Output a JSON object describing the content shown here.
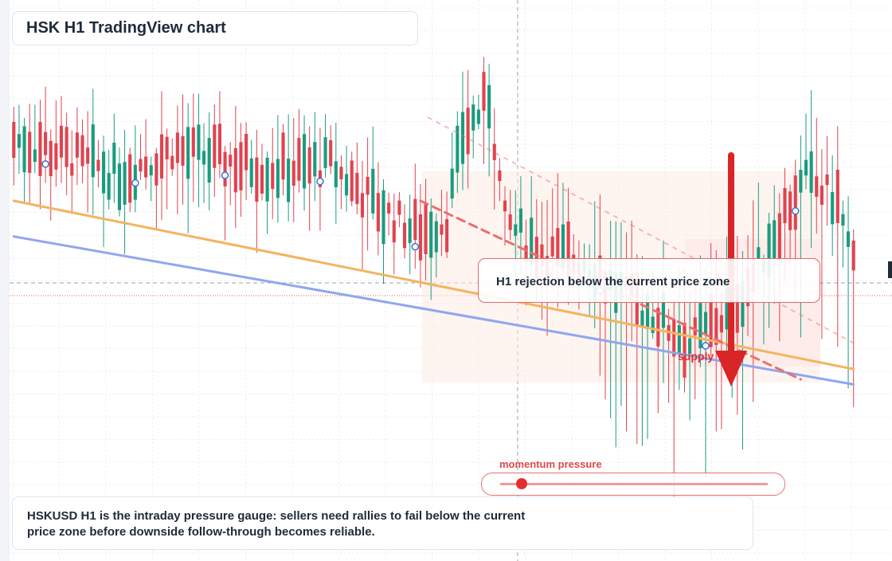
{
  "title": "HSK H1 TradingView chart",
  "callout": {
    "text": "H1 rejection below the current price zone"
  },
  "supply_label": "supply",
  "momentum": {
    "label": "momentum pressure",
    "level": 0.08
  },
  "note": {
    "line1": "HSKUSD H1 is the intraday pressure gauge: sellers need rallies to fail below the current",
    "line2": "price zone before downside follow-through becomes reliable."
  },
  "colors": {
    "bull": "#1a9c7e",
    "bear": "#e0434f",
    "trend_orange": "#f3b45f",
    "trend_blue": "#8fa6f0",
    "resistance_dashed": "#ea6f6f",
    "arrow": "#d92525",
    "marker": "#3a6fd8"
  },
  "chart_data": {
    "type": "candlestick",
    "symbol": "HSKUSD",
    "timeframe": "H1",
    "y_axis": {
      "range": [
        0,
        100
      ],
      "unit": "relative price (no tick labels printed)"
    },
    "current_price_level": 51.4,
    "trend_lines": [
      {
        "name": "",
        "style": "solid",
        "color": "orange",
        "from": {
          "bar": 0,
          "price": 70.0
        },
        "to": {
          "bar": 159,
          "price": 37.0
        }
      },
      {
        "name": "",
        "style": "solid",
        "color": "blue",
        "from": {
          "bar": 0,
          "price": 63.0
        },
        "to": {
          "bar": 159,
          "price": 34.0
        }
      },
      {
        "name": "",
        "style": "dashed",
        "color": "red",
        "from": {
          "bar": 77,
          "price": 70.0
        },
        "to": {
          "bar": 149,
          "price": 35.0
        }
      }
    ],
    "markers_at_bars": [
      6,
      23,
      40,
      58,
      76,
      111,
      131,
      148
    ],
    "annotations": [
      "H1 rejection below the current price zone",
      "supply",
      "momentum pressure"
    ]
  }
}
